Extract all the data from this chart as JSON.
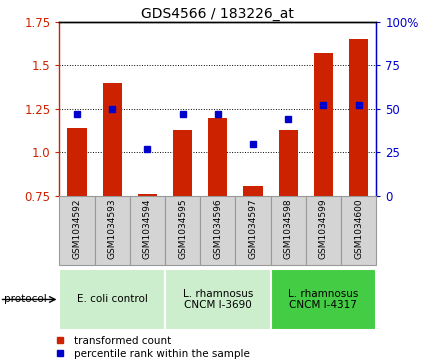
{
  "title": "GDS4566 / 183226_at",
  "samples": [
    "GSM1034592",
    "GSM1034593",
    "GSM1034594",
    "GSM1034595",
    "GSM1034596",
    "GSM1034597",
    "GSM1034598",
    "GSM1034599",
    "GSM1034600"
  ],
  "transformed_count": [
    1.14,
    1.4,
    0.76,
    1.13,
    1.2,
    0.81,
    1.13,
    1.57,
    1.65
  ],
  "percentile_rank": [
    47,
    50,
    27,
    47,
    47,
    30,
    44,
    52,
    52
  ],
  "ylim_left": [
    0.75,
    1.75
  ],
  "ylim_right": [
    0,
    100
  ],
  "yticks_left": [
    0.75,
    1.0,
    1.25,
    1.5,
    1.75
  ],
  "yticks_right": [
    0,
    25,
    50,
    75,
    100
  ],
  "bar_color": "#cc2200",
  "dot_color": "#0000cc",
  "bar_bottom": 0.75,
  "bar_width": 0.55,
  "protocols": [
    {
      "label": "E. coli control",
      "start": 0,
      "end": 3,
      "color": "#cceecc"
    },
    {
      "label": "L. rhamnosus\nCNCM I-3690",
      "start": 3,
      "end": 6,
      "color": "#cceecc"
    },
    {
      "label": "L. rhamnosus\nCNCM I-4317",
      "start": 6,
      "end": 9,
      "color": "#44cc44"
    }
  ],
  "legend_items": [
    {
      "label": "transformed count",
      "color": "#cc2200"
    },
    {
      "label": "percentile rank within the sample",
      "color": "#0000cc"
    }
  ],
  "label_color_left": "#cc2200",
  "label_color_right": "#0000cc",
  "sample_box_color": "#d4d4d4",
  "sample_box_edge": "#999999"
}
